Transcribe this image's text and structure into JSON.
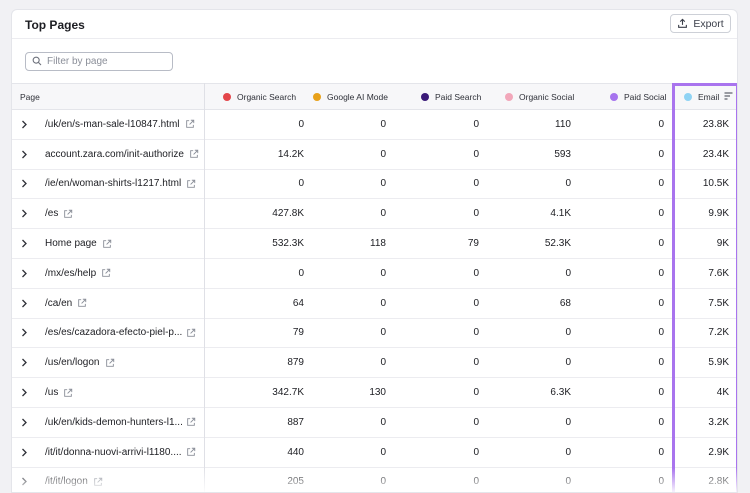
{
  "header": {
    "title": "Top Pages",
    "export_label": "Export"
  },
  "filter": {
    "placeholder": "Filter by page",
    "value": ""
  },
  "columns": {
    "page": "Page",
    "organic_search": {
      "label": "Organic Search",
      "color": "#e3464a"
    },
    "google_ai_mode": {
      "label": "Google AI Mode",
      "color": "#e8a11a"
    },
    "paid_search": {
      "label": "Paid Search",
      "color": "#3a1a78"
    },
    "organic_social": {
      "label": "Organic Social",
      "color": "#f2a7ba"
    },
    "paid_social": {
      "label": "Paid Social",
      "color": "#a674ee"
    },
    "email": {
      "label": "Email",
      "color": "#8fd3f4",
      "sorted": true
    }
  },
  "rows": [
    {
      "page": "/uk/en/s-man-sale-l10847.html",
      "organic_search": "0",
      "google_ai_mode": "0",
      "paid_search": "0",
      "organic_social": "110",
      "paid_social": "0",
      "email": "23.8K"
    },
    {
      "page": "account.zara.com/init-authorize",
      "organic_search": "14.2K",
      "google_ai_mode": "0",
      "paid_search": "0",
      "organic_social": "593",
      "paid_social": "0",
      "email": "23.4K"
    },
    {
      "page": "/ie/en/woman-shirts-l1217.html",
      "organic_search": "0",
      "google_ai_mode": "0",
      "paid_search": "0",
      "organic_social": "0",
      "paid_social": "0",
      "email": "10.5K"
    },
    {
      "page": "/es",
      "organic_search": "427.8K",
      "google_ai_mode": "0",
      "paid_search": "0",
      "organic_social": "4.1K",
      "paid_social": "0",
      "email": "9.9K"
    },
    {
      "page": "Home page",
      "organic_search": "532.3K",
      "google_ai_mode": "118",
      "paid_search": "79",
      "organic_social": "52.3K",
      "paid_social": "0",
      "email": "9K"
    },
    {
      "page": "/mx/es/help",
      "organic_search": "0",
      "google_ai_mode": "0",
      "paid_search": "0",
      "organic_social": "0",
      "paid_social": "0",
      "email": "7.6K"
    },
    {
      "page": "/ca/en",
      "organic_search": "64",
      "google_ai_mode": "0",
      "paid_search": "0",
      "organic_social": "68",
      "paid_social": "0",
      "email": "7.5K"
    },
    {
      "page": "/es/es/cazadora-efecto-piel-p...",
      "organic_search": "79",
      "google_ai_mode": "0",
      "paid_search": "0",
      "organic_social": "0",
      "paid_social": "0",
      "email": "7.2K"
    },
    {
      "page": "/us/en/logon",
      "organic_search": "879",
      "google_ai_mode": "0",
      "paid_search": "0",
      "organic_social": "0",
      "paid_social": "0",
      "email": "5.9K"
    },
    {
      "page": "/us",
      "organic_search": "342.7K",
      "google_ai_mode": "130",
      "paid_search": "0",
      "organic_social": "6.3K",
      "paid_social": "0",
      "email": "4K"
    },
    {
      "page": "/uk/en/kids-demon-hunters-l1...",
      "organic_search": "887",
      "google_ai_mode": "0",
      "paid_search": "0",
      "organic_social": "0",
      "paid_social": "0",
      "email": "3.2K"
    },
    {
      "page": "/it/it/donna-nuovi-arrivi-l1180....",
      "organic_search": "440",
      "google_ai_mode": "0",
      "paid_search": "0",
      "organic_social": "0",
      "paid_social": "0",
      "email": "2.9K"
    },
    {
      "page": "/it/it/logon",
      "organic_search": "205",
      "google_ai_mode": "0",
      "paid_search": "0",
      "organic_social": "0",
      "paid_social": "0",
      "email": "2.8K"
    }
  ]
}
